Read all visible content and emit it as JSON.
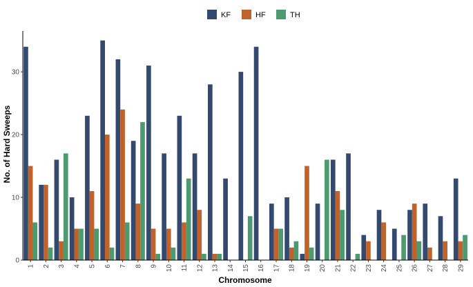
{
  "chart_data": {
    "type": "bar",
    "xlabel": "Chromosome",
    "ylabel": "No. of Hard Sweeps",
    "ylim": [
      0,
      36.5
    ],
    "yticks": [
      0,
      10,
      20,
      30
    ],
    "grid": false,
    "legend_position": "top-center",
    "categories": [
      "1",
      "2",
      "3",
      "4",
      "5",
      "6",
      "7",
      "8",
      "9",
      "10",
      "11",
      "12",
      "13",
      "14",
      "15",
      "16",
      "17",
      "18",
      "19",
      "20",
      "21",
      "22",
      "23",
      "24",
      "25",
      "26",
      "27",
      "28",
      "29"
    ],
    "series": [
      {
        "name": "KF",
        "color": "#34496e",
        "values": [
          34,
          12,
          16,
          10,
          23,
          35,
          32,
          19,
          31,
          17,
          23,
          17,
          28,
          13,
          30,
          34,
          9,
          10,
          1,
          9,
          16,
          17,
          4,
          8,
          5,
          8,
          9,
          7,
          13
        ]
      },
      {
        "name": "HF",
        "color": "#c0622a",
        "values": [
          15,
          12,
          3,
          5,
          11,
          20,
          24,
          9,
          5,
          5,
          6,
          8,
          1,
          0,
          0,
          0,
          5,
          2,
          15,
          0,
          11,
          0,
          3,
          6,
          0,
          9,
          2,
          3,
          3
        ]
      },
      {
        "name": "TH",
        "color": "#4e9a70",
        "values": [
          6,
          2,
          17,
          5,
          5,
          2,
          6,
          22,
          1,
          2,
          13,
          1,
          1,
          0,
          7,
          0,
          5,
          3,
          2,
          16,
          8,
          1,
          0,
          0,
          4,
          3,
          0,
          0,
          4
        ]
      }
    ]
  }
}
